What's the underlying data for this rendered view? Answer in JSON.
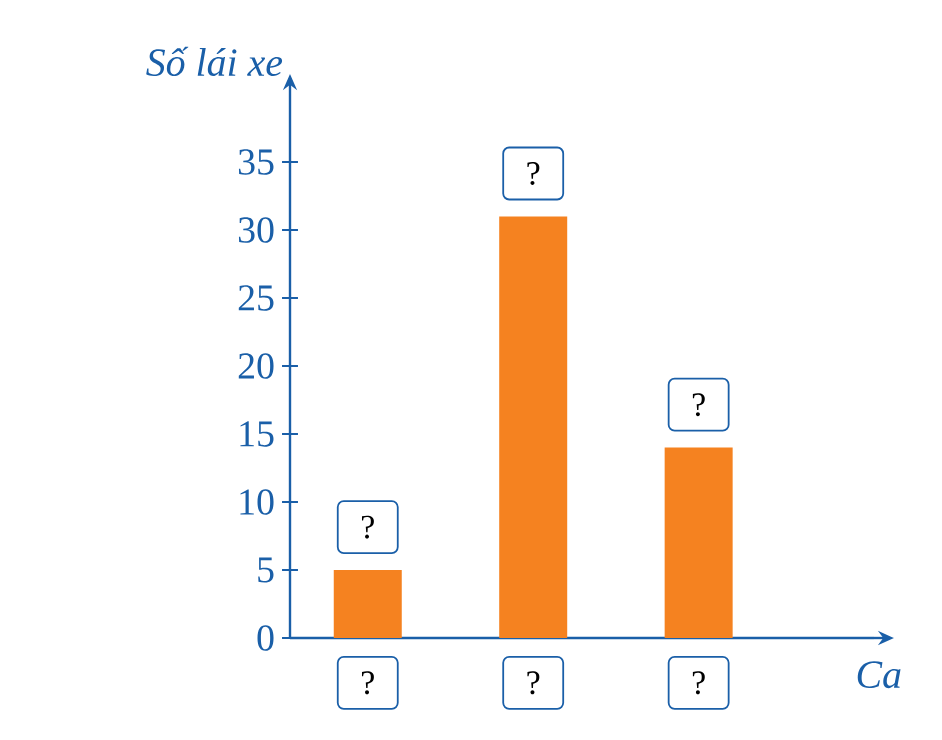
{
  "chart_data": {
    "type": "bar",
    "xlabel": "Ca",
    "ylabel": "Số lái xe",
    "categories": [
      "?",
      "?",
      "?"
    ],
    "values": [
      5,
      31,
      14
    ],
    "value_labels": [
      "?",
      "?",
      "?"
    ],
    "color": "#f58220",
    "ylim": [
      0,
      40
    ],
    "yticks": [
      0,
      5,
      10,
      15,
      20,
      25,
      30,
      35
    ]
  }
}
